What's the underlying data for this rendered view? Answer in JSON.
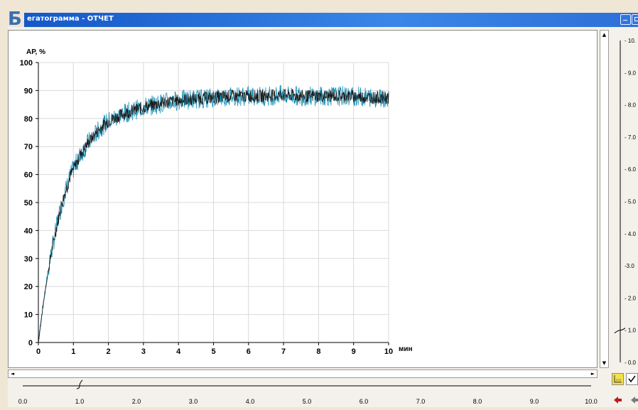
{
  "figure_letter": "Б",
  "window": {
    "title": "егатограмма - ОТЧЕТ"
  },
  "colors": {
    "titlebar": "#2166d8",
    "series_main": "#1a1a1a",
    "series_noise": "#1c8fb4",
    "grid": "#d9d9d9"
  },
  "chart_data": {
    "type": "line",
    "title": "",
    "ylabel": "АР, %",
    "xlabel": "мин",
    "xlim": [
      0,
      10
    ],
    "ylim": [
      0,
      100
    ],
    "x_ticks": [
      "0",
      "1",
      "2",
      "3",
      "4",
      "5",
      "6",
      "7",
      "8",
      "9",
      "10"
    ],
    "y_ticks": [
      "0",
      "10",
      "20",
      "30",
      "40",
      "50",
      "60",
      "70",
      "80",
      "90",
      "100"
    ],
    "grid": true,
    "series": [
      {
        "x": [
          0,
          0.1,
          0.2,
          0.3,
          0.4,
          0.5,
          0.6,
          0.7,
          0.8,
          0.9,
          1.0,
          1.2,
          1.4,
          1.6,
          1.8,
          2.0,
          2.3,
          2.6,
          3.0,
          3.5,
          4.0,
          4.5,
          5.0,
          5.5,
          6.0,
          6.5,
          7.0,
          7.5,
          8.0,
          8.5,
          9.0,
          9.5,
          10.0
        ],
        "values": [
          0,
          10,
          19,
          27,
          34,
          40,
          46,
          51,
          55,
          59,
          62,
          67,
          71,
          74,
          77,
          79,
          81,
          82.5,
          84,
          85.5,
          86.5,
          87,
          87.5,
          88,
          88,
          88,
          88.5,
          88,
          88,
          88,
          88,
          87.5,
          87.5
        ]
      }
    ]
  },
  "bottom_scale": {
    "labels": [
      "0.0",
      "1.0",
      "2.0",
      "3.0",
      "4.0",
      "5.0",
      "6.0",
      "7.0",
      "8.0",
      "9.0",
      "10.0"
    ],
    "slider_value": 1.0
  },
  "right_scale": {
    "labels": [
      "- 10.",
      "- 9.0",
      "- 8.0",
      "- 7.0",
      "- 6.0",
      "- 5.0",
      "- 4.0",
      "-3.0",
      "- 2.0",
      "- 1.0",
      "- 0.0"
    ],
    "slider_value": 1.0
  },
  "scroll_arrows": {
    "up": "▲",
    "down": "▼",
    "left": "◄",
    "right": "►"
  },
  "icons": [
    "grid-icon",
    "checkbox-icon",
    "arrow-left-icon",
    "arrow-right-icon",
    "minimize-icon",
    "maximize-icon"
  ]
}
